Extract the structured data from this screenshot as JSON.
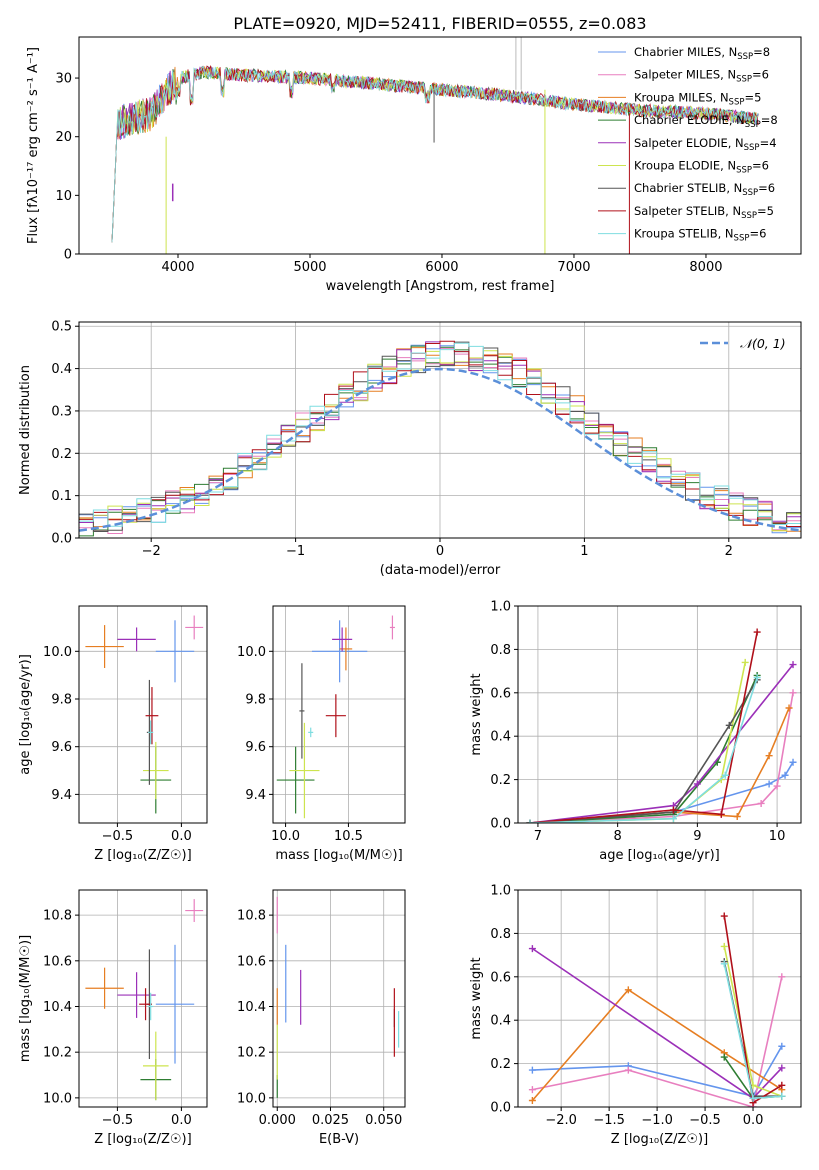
{
  "figure_title": "PLATE=0920, MJD=52411, FIBERID=0555, z=0.083",
  "colors": [
    "#6495ed",
    "#e87fbf",
    "#e67e22",
    "#2e7d32",
    "#9b30b8",
    "#cde44f",
    "#555555",
    "#b0101a",
    "#7fdde0"
  ],
  "chart_data": [
    {
      "id": "spectrum",
      "type": "line",
      "xlabel": "wavelength [Angstrom, rest frame]",
      "ylabel": "Flux [fλ10⁻¹⁷ erg cm⁻² s⁻¹ A⁻¹]",
      "xlim": [
        3250,
        8720
      ],
      "ylim": [
        0,
        37
      ],
      "xticks": [
        4000,
        5000,
        6000,
        7000,
        8000
      ],
      "yticks": [
        0,
        10,
        20,
        30
      ],
      "x_range_of_series": [
        3500,
        8400
      ],
      "series": [
        {
          "name": "Chabrier MILES, N_SSP=8"
        },
        {
          "name": "Salpeter MILES, N_SSP=6"
        },
        {
          "name": "Kroupa MILES, N_SSP=5"
        },
        {
          "name": "Chabrier ELODIE, N_SSP=8"
        },
        {
          "name": "Salpeter ELODIE, N_SSP=4"
        },
        {
          "name": "Kroupa ELODIE, N_SSP=6"
        },
        {
          "name": "Chabrier STELIB, N_SSP=6"
        },
        {
          "name": "Salpeter STELIB, N_SSP=5"
        },
        {
          "name": "Kroupa STELIB, N_SSP=6"
        }
      ],
      "legend": {
        "position": "upper-right",
        "entries": [
          {
            "pre": "Chabrier MILES, N",
            "sub": "SSP",
            "post": "=8"
          },
          {
            "pre": "Salpeter MILES, N",
            "sub": "SSP",
            "post": "=6"
          },
          {
            "pre": "Kroupa MILES, N",
            "sub": "SSP",
            "post": "=5"
          },
          {
            "pre": "Chabrier ELODIE, N",
            "sub": "SSP",
            "post": "=8"
          },
          {
            "pre": "Salpeter ELODIE, N",
            "sub": "SSP",
            "post": "=4"
          },
          {
            "pre": "Kroupa ELODIE, N",
            "sub": "SSP",
            "post": "=6"
          },
          {
            "pre": "Chabrier STELIB, N",
            "sub": "SSP",
            "post": "=6"
          },
          {
            "pre": "Salpeter STELIB, N",
            "sub": "SSP",
            "post": "=5"
          },
          {
            "pre": "Kroupa STELIB, N",
            "sub": "SSP",
            "post": "=6"
          }
        ]
      },
      "continuum": [
        [
          3500,
          22
        ],
        [
          3800,
          24
        ],
        [
          4000,
          30
        ],
        [
          4200,
          31
        ],
        [
          4500,
          30.5
        ],
        [
          5000,
          30
        ],
        [
          5500,
          29
        ],
        [
          6000,
          28
        ],
        [
          6500,
          27
        ],
        [
          7000,
          25.5
        ],
        [
          7500,
          24.5
        ],
        [
          8000,
          24
        ],
        [
          8400,
          23
        ]
      ]
    },
    {
      "id": "residuals",
      "type": "histogram",
      "xlabel": "(data-model)/error",
      "ylabel": "Normed distribution",
      "xlim": [
        -2.5,
        2.5
      ],
      "ylim": [
        0,
        0.51
      ],
      "xticks": [
        -2,
        -1,
        0,
        1,
        2
      ],
      "yticks": [
        0.0,
        0.1,
        0.2,
        0.3,
        0.4,
        0.5
      ],
      "legend": "𝒩(0, 1)",
      "legend_position": "upper-right",
      "reference_curve": "normal(0,1)",
      "bin_width": 0.1,
      "bins_from": -2.5,
      "grid": true
    },
    {
      "id": "age_vs_Z",
      "type": "errorbar",
      "xlabel": "Z [log₁₀(Z/Z☉)]",
      "ylabel": "age  [log₁₀(age/yr)]",
      "xlim": [
        -0.8,
        0.2
      ],
      "ylim": [
        9.28,
        10.19
      ],
      "xticks": [
        -0.5,
        0.0
      ],
      "yticks": [
        9.4,
        9.6,
        9.8,
        10.0
      ],
      "points": [
        {
          "x": -0.05,
          "y": 10.0,
          "xerr": 0.15,
          "yerr": 0.13
        },
        {
          "x": 0.1,
          "y": 10.1,
          "xerr": 0.07,
          "yerr": 0.05
        },
        {
          "x": -0.6,
          "y": 10.02,
          "xerr": 0.15,
          "yerr": 0.09
        },
        {
          "x": -0.2,
          "y": 9.46,
          "xerr": 0.12,
          "yerr": 0.14
        },
        {
          "x": -0.35,
          "y": 10.05,
          "xerr": 0.15,
          "yerr": 0.05
        },
        {
          "x": -0.2,
          "y": 9.5,
          "xerr": 0.1,
          "yerr": 0.12
        },
        {
          "x": -0.25,
          "y": 9.66,
          "xerr": 0.02,
          "yerr": 0.22
        },
        {
          "x": -0.23,
          "y": 9.73,
          "xerr": 0.05,
          "yerr": 0.12
        },
        {
          "x": -0.24,
          "y": 9.66,
          "xerr": 0.02,
          "yerr": 0.05
        }
      ]
    },
    {
      "id": "age_vs_mass",
      "type": "errorbar",
      "xlabel": "mass [log₁₀(M/M☉)]",
      "ylabel": "",
      "xlim": [
        9.9,
        10.95
      ],
      "ylim": [
        9.28,
        10.19
      ],
      "xticks": [
        10.0,
        10.5
      ],
      "yticks": [
        9.4,
        9.6,
        9.8,
        10.0
      ],
      "points": [
        {
          "x": 10.43,
          "y": 10.0,
          "xerr": 0.22,
          "yerr": 0.13
        },
        {
          "x": 10.85,
          "y": 10.1,
          "xerr": 0.02,
          "yerr": 0.05
        },
        {
          "x": 10.48,
          "y": 10.01,
          "xerr": 0.05,
          "yerr": 0.09
        },
        {
          "x": 10.08,
          "y": 9.46,
          "xerr": 0.15,
          "yerr": 0.14
        },
        {
          "x": 10.45,
          "y": 10.05,
          "xerr": 0.08,
          "yerr": 0.05
        },
        {
          "x": 10.15,
          "y": 9.5,
          "xerr": 0.12,
          "yerr": 0.2
        },
        {
          "x": 10.13,
          "y": 9.75,
          "xerr": 0.02,
          "yerr": 0.2
        },
        {
          "x": 10.4,
          "y": 9.73,
          "xerr": 0.08,
          "yerr": 0.09
        },
        {
          "x": 10.2,
          "y": 9.66,
          "xerr": 0.02,
          "yerr": 0.02
        }
      ]
    },
    {
      "id": "massweight_vs_age",
      "type": "line",
      "xlabel": "age  [log₁₀(age/yr)]",
      "ylabel": "mass weight",
      "xlim": [
        6.75,
        10.3
      ],
      "ylim": [
        0,
        1.0
      ],
      "xticks": [
        7,
        8,
        9,
        10
      ],
      "yticks": [
        0.0,
        0.2,
        0.4,
        0.6,
        0.8,
        1.0
      ],
      "series": [
        {
          "x": [
            6.9,
            8.7,
            9.9,
            10.1,
            10.2
          ],
          "y": [
            0.0,
            0.05,
            0.18,
            0.22,
            0.28
          ]
        },
        {
          "x": [
            6.9,
            8.7,
            9.8,
            10.0,
            10.2
          ],
          "y": [
            0.0,
            0.03,
            0.09,
            0.17,
            0.6
          ]
        },
        {
          "x": [
            6.9,
            8.7,
            9.5,
            9.9,
            10.15
          ],
          "y": [
            0.0,
            0.05,
            0.03,
            0.31,
            0.53
          ]
        },
        {
          "x": [
            6.9,
            8.7,
            9.25,
            9.75
          ],
          "y": [
            0.0,
            0.04,
            0.28,
            0.68
          ]
        },
        {
          "x": [
            6.9,
            8.7,
            9.0,
            10.2
          ],
          "y": [
            0.0,
            0.08,
            0.18,
            0.73
          ]
        },
        {
          "x": [
            6.9,
            8.7,
            9.3,
            9.6
          ],
          "y": [
            0.0,
            0.02,
            0.2,
            0.74
          ]
        },
        {
          "x": [
            6.9,
            8.7,
            9.4,
            9.75
          ],
          "y": [
            0.0,
            0.05,
            0.45,
            0.66
          ]
        },
        {
          "x": [
            6.9,
            8.7,
            9.3,
            9.75
          ],
          "y": [
            0.0,
            0.06,
            0.04,
            0.88
          ]
        },
        {
          "x": [
            6.9,
            8.7,
            9.35,
            9.75
          ],
          "y": [
            0.0,
            0.02,
            0.22,
            0.67
          ]
        }
      ]
    },
    {
      "id": "mass_vs_Z",
      "type": "errorbar",
      "xlabel": "Z [log₁₀(Z/Z☉)]",
      "ylabel": "mass [log₁₀(M/M☉)]",
      "xlim": [
        -0.8,
        0.2
      ],
      "ylim": [
        9.96,
        10.91
      ],
      "xticks": [
        -0.5,
        0.0
      ],
      "yticks": [
        10.0,
        10.2,
        10.4,
        10.6,
        10.8
      ],
      "points": [
        {
          "x": -0.05,
          "y": 10.41,
          "xerr": 0.15,
          "yerr": 0.26
        },
        {
          "x": 0.1,
          "y": 10.82,
          "xerr": 0.07,
          "yerr": 0.05
        },
        {
          "x": -0.6,
          "y": 10.48,
          "xerr": 0.15,
          "yerr": 0.09
        },
        {
          "x": -0.2,
          "y": 10.08,
          "xerr": 0.12,
          "yerr": 0.09
        },
        {
          "x": -0.35,
          "y": 10.45,
          "xerr": 0.15,
          "yerr": 0.1
        },
        {
          "x": -0.2,
          "y": 10.14,
          "xerr": 0.1,
          "yerr": 0.15
        },
        {
          "x": -0.25,
          "y": 10.41,
          "xerr": 0.02,
          "yerr": 0.24
        },
        {
          "x": -0.28,
          "y": 10.41,
          "xerr": 0.05,
          "yerr": 0.07
        },
        {
          "x": -0.24,
          "y": 10.4,
          "xerr": 0.02,
          "yerr": 0.06
        }
      ]
    },
    {
      "id": "mass_vs_EBV",
      "type": "errorbar",
      "xlabel": "E(B-V)",
      "ylabel": "",
      "xlim": [
        -0.002,
        0.06
      ],
      "ylim": [
        9.96,
        10.91
      ],
      "xticks": [
        0.0,
        0.025,
        0.05
      ],
      "yticks": [
        10.0,
        10.2,
        10.4,
        10.6,
        10.8
      ],
      "points": [
        {
          "x": 0.004,
          "y": 10.5,
          "xerr": 0.0,
          "yerr": 0.17
        },
        {
          "x": 0.0,
          "y": 10.8,
          "xerr": 0.0,
          "yerr": 0.08
        },
        {
          "x": 0.0,
          "y": 10.4,
          "xerr": 0.0,
          "yerr": 0.08
        },
        {
          "x": 0.0,
          "y": 10.05,
          "xerr": 0.0,
          "yerr": 0.05
        },
        {
          "x": 0.011,
          "y": 10.44,
          "xerr": 0.0,
          "yerr": 0.12
        },
        {
          "x": 0.0,
          "y": 10.2,
          "xerr": 0.0,
          "yerr": 0.12
        },
        {
          "x": 0.055,
          "y": 10.35,
          "xerr": 0.0,
          "yerr": 0.04
        },
        {
          "x": 0.055,
          "y": 10.33,
          "xerr": 0.0,
          "yerr": 0.15
        },
        {
          "x": 0.057,
          "y": 10.3,
          "xerr": 0.0,
          "yerr": 0.08
        }
      ]
    },
    {
      "id": "massweight_vs_Z",
      "type": "line",
      "xlabel": "Z [log₁₀(Z/Z☉)]",
      "ylabel": "mass weight",
      "xlim": [
        -2.45,
        0.5
      ],
      "ylim": [
        0,
        1.0
      ],
      "xticks": [
        -2.0,
        -1.5,
        -1.0,
        -0.5,
        0.0
      ],
      "yticks": [
        0.0,
        0.2,
        0.4,
        0.6,
        0.8,
        1.0
      ],
      "series": [
        {
          "x": [
            -2.3,
            -1.3,
            0.0,
            0.3
          ],
          "y": [
            0.17,
            0.19,
            0.05,
            0.28
          ]
        },
        {
          "x": [
            -2.3,
            -1.3,
            0.0,
            0.3
          ],
          "y": [
            0.08,
            0.17,
            0.0,
            0.6
          ]
        },
        {
          "x": [
            -2.3,
            -1.3,
            -0.3,
            0.3
          ],
          "y": [
            0.03,
            0.54,
            0.25,
            0.08
          ]
        },
        {
          "x": [
            -0.3,
            0.0,
            0.3
          ],
          "y": [
            0.23,
            0.04,
            0.05
          ]
        },
        {
          "x": [
            -2.3,
            0.0,
            0.3
          ],
          "y": [
            0.73,
            0.04,
            0.18
          ]
        },
        {
          "x": [
            -0.3,
            0.0,
            0.3
          ],
          "y": [
            0.74,
            0.1,
            0.05
          ]
        },
        {
          "x": [
            -0.3,
            0.0,
            0.3
          ],
          "y": [
            0.67,
            0.05,
            0.05
          ]
        },
        {
          "x": [
            -0.3,
            0.0,
            0.3
          ],
          "y": [
            0.88,
            0.02,
            0.1
          ]
        },
        {
          "x": [
            -0.3,
            0.0,
            0.3
          ],
          "y": [
            0.66,
            0.04,
            0.05
          ]
        }
      ]
    }
  ]
}
